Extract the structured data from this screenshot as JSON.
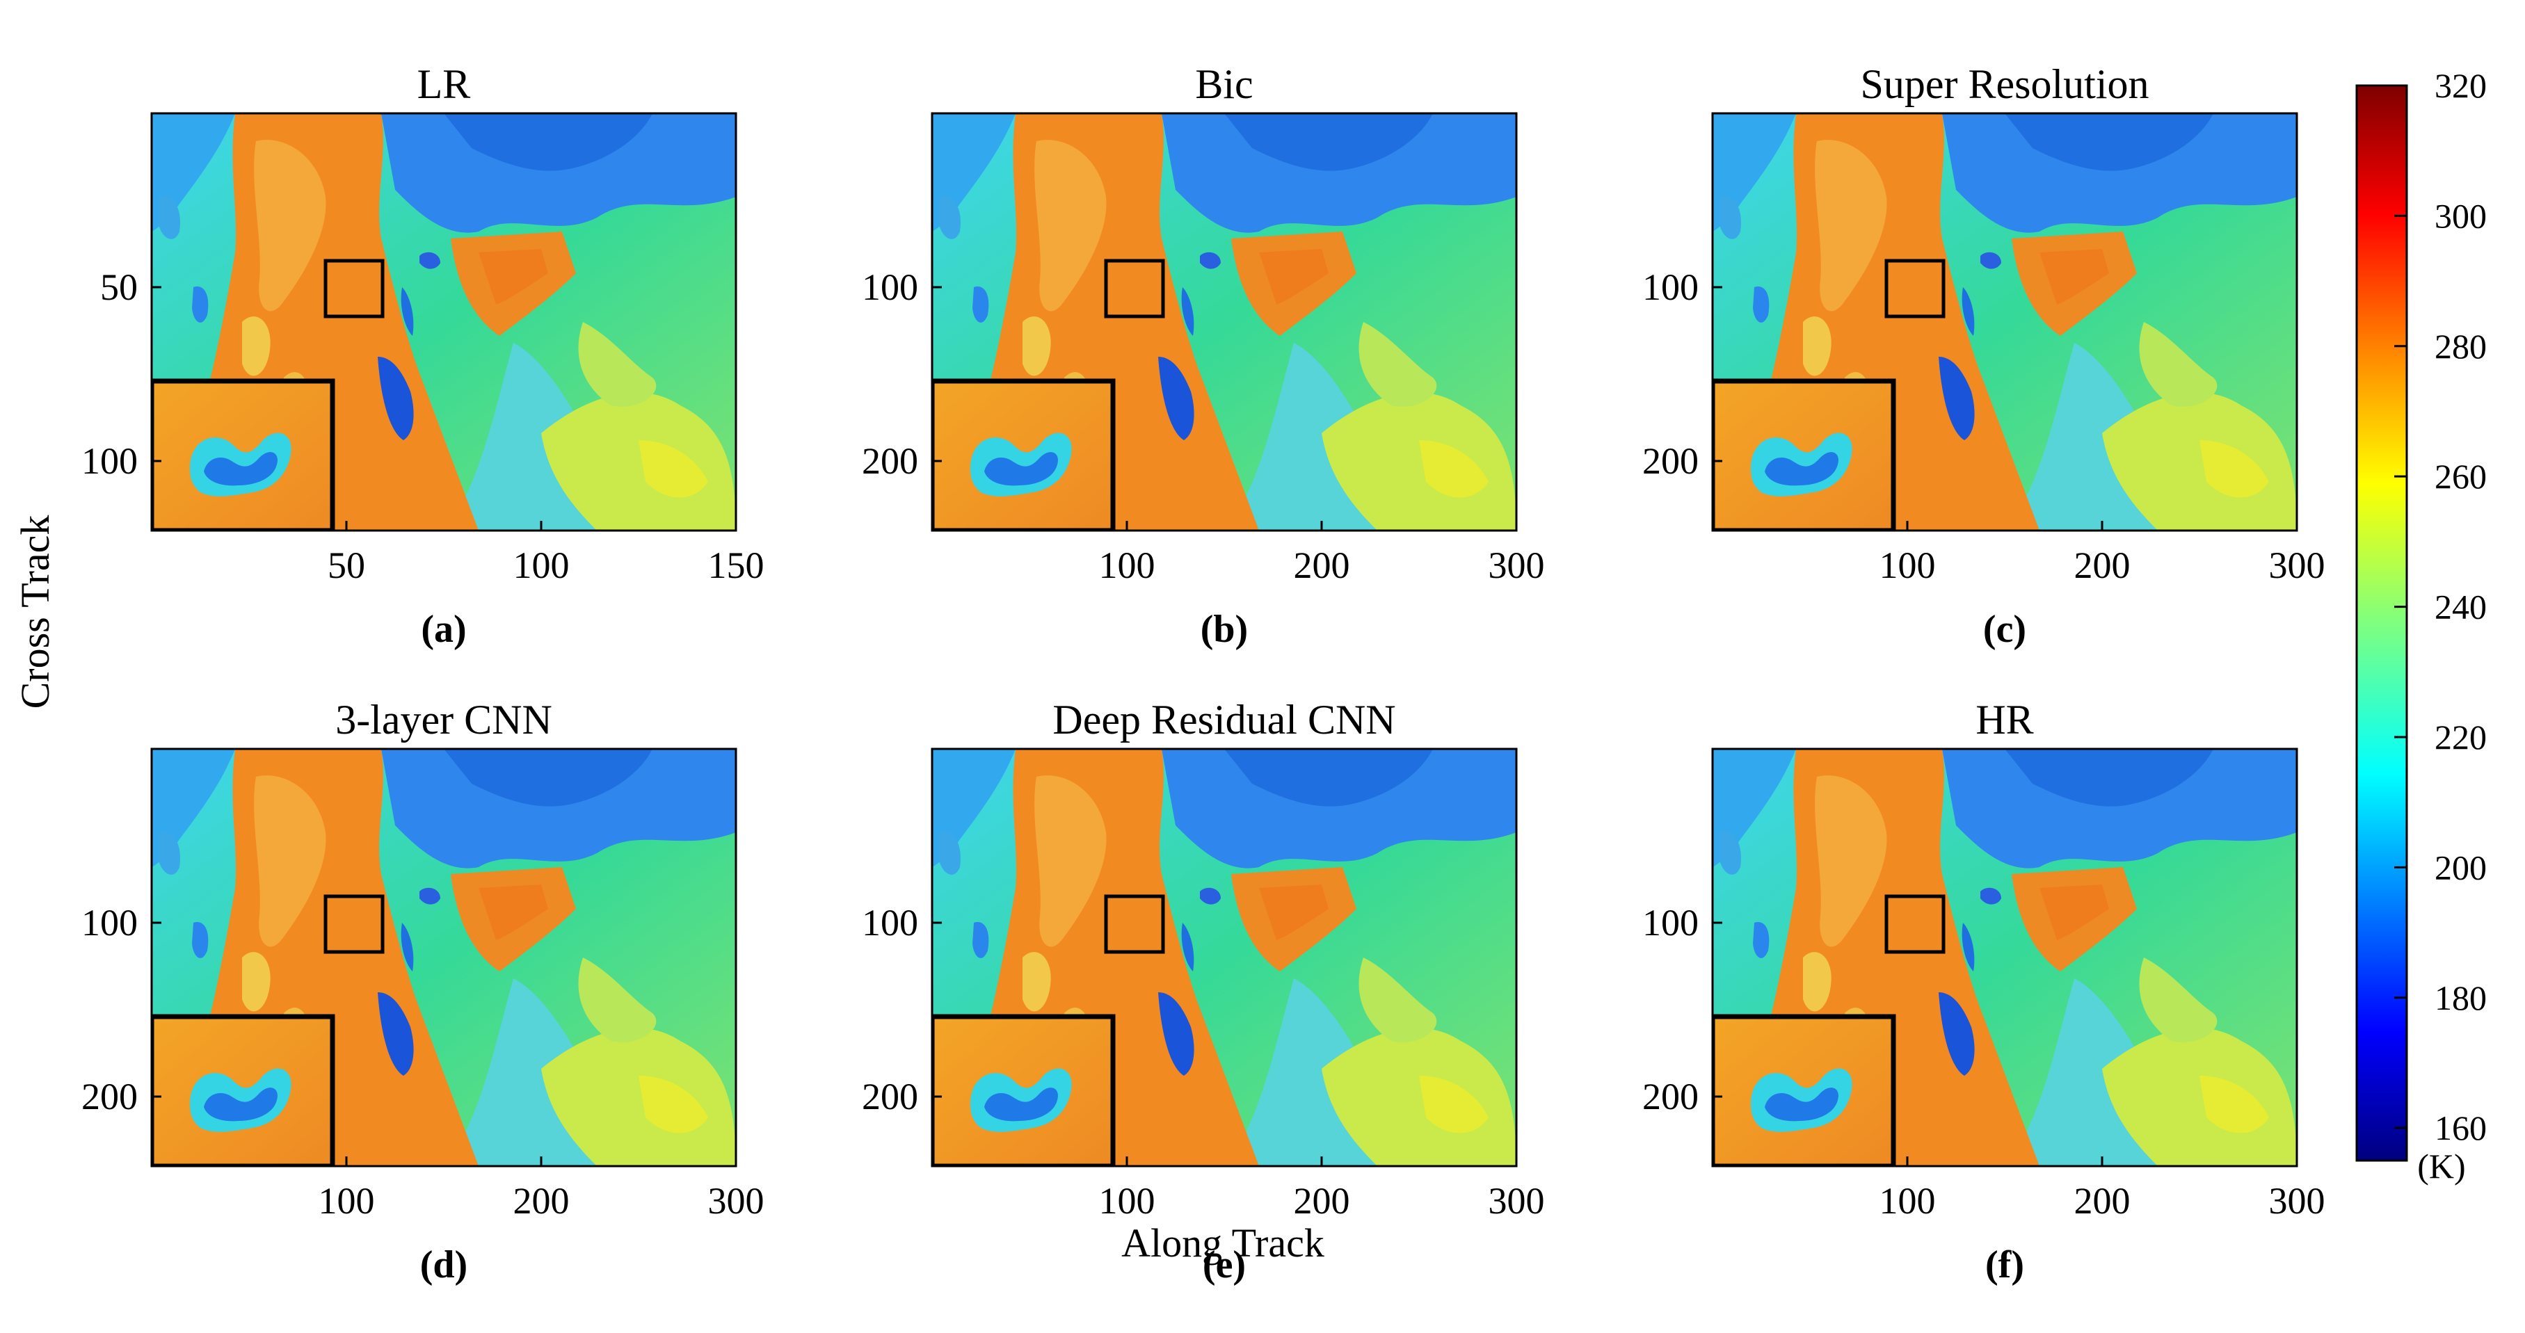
{
  "figure": {
    "ylabel": "Cross Track",
    "xlabel": "Along Track"
  },
  "colorbar": {
    "ticks": [
      "320",
      "300",
      "280",
      "260",
      "240",
      "220",
      "200",
      "180",
      "160"
    ],
    "unit": "(K)",
    "range": [
      155,
      320
    ],
    "colormap": [
      "#00007f",
      "#0000ff",
      "#007fff",
      "#00ffff",
      "#7fff7f",
      "#ffff00",
      "#ff7f00",
      "#ff0000",
      "#7f0000"
    ]
  },
  "palette": {
    "cold_blue": "#1f6fe0",
    "cyan": "#3fd6ef",
    "green": "#35d998",
    "yellow": "#e6ec33",
    "warm_orange": "#f28a22",
    "deep_blue": "#1a3fd8"
  },
  "chart_data": [
    {
      "type": "heatmap",
      "panel": "a",
      "title": "LR",
      "caption": "(a)",
      "xticks": [
        "50",
        "100",
        "150"
      ],
      "yticks": [
        "50",
        "100"
      ],
      "xlim": [
        0,
        150
      ],
      "ylim": [
        0,
        120
      ]
    },
    {
      "type": "heatmap",
      "panel": "b",
      "title": "Bic",
      "caption": "(b)",
      "xticks": [
        "100",
        "200",
        "300"
      ],
      "yticks": [
        "100",
        "200"
      ],
      "xlim": [
        0,
        300
      ],
      "ylim": [
        0,
        240
      ]
    },
    {
      "type": "heatmap",
      "panel": "c",
      "title": "Super Resolution",
      "caption": "(c)",
      "xticks": [
        "100",
        "200",
        "300"
      ],
      "yticks": [
        "100",
        "200"
      ],
      "xlim": [
        0,
        300
      ],
      "ylim": [
        0,
        240
      ]
    },
    {
      "type": "heatmap",
      "panel": "d",
      "title": "3-layer CNN",
      "caption": "(d)",
      "xticks": [
        "100",
        "200",
        "300"
      ],
      "yticks": [
        "100",
        "200"
      ],
      "xlim": [
        0,
        300
      ],
      "ylim": [
        0,
        240
      ]
    },
    {
      "type": "heatmap",
      "panel": "e",
      "title": "Deep Residual CNN",
      "caption": "(e)",
      "xticks": [
        "100",
        "200",
        "300"
      ],
      "yticks": [
        "100",
        "200"
      ],
      "xlim": [
        0,
        300
      ],
      "ylim": [
        0,
        240
      ]
    },
    {
      "type": "heatmap",
      "panel": "f",
      "title": "HR",
      "caption": "(f)",
      "xticks": [
        "100",
        "200",
        "300"
      ],
      "yticks": [
        "100",
        "200"
      ],
      "xlim": [
        0,
        300
      ],
      "ylim": [
        0,
        240
      ]
    }
  ]
}
